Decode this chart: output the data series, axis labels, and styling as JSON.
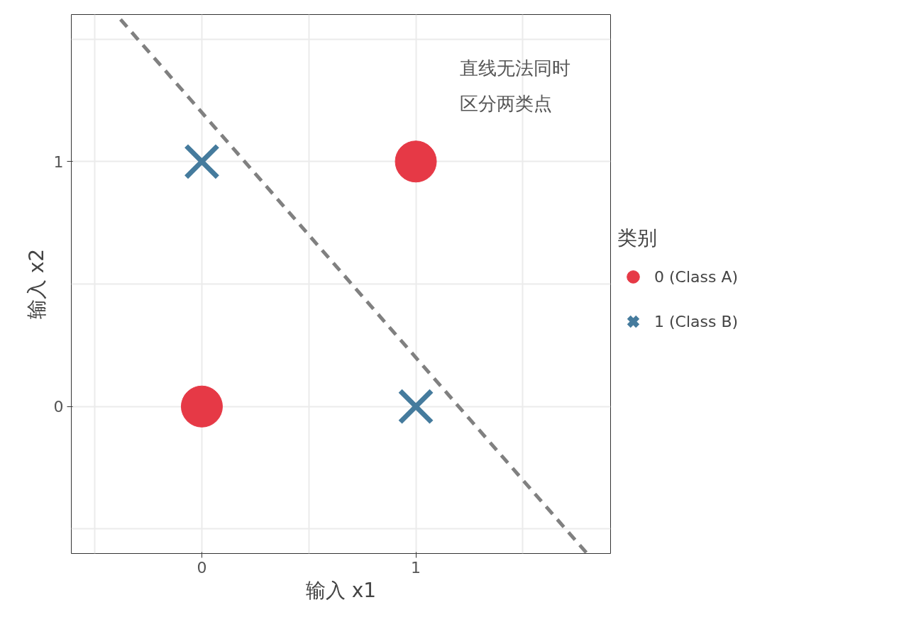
{
  "chart_data": {
    "type": "scatter",
    "xlabel": "输入 x1",
    "ylabel": "输入 x2",
    "legend_title": "类别",
    "legend": "right",
    "xlim": [
      -0.61,
      1.91
    ],
    "ylim": [
      -0.6,
      1.6
    ],
    "xticks": [
      {
        "value": -0.5,
        "label": null
      },
      0,
      {
        "value": 0.5,
        "label": null
      },
      1,
      {
        "value": 1.5,
        "label": null
      }
    ],
    "yticks": [
      {
        "value": -0.5,
        "label": null
      },
      0,
      {
        "value": 0.5,
        "label": null
      },
      1,
      {
        "value": 1.5,
        "label": null
      }
    ],
    "grid": true,
    "annotations": [
      "直线无法同时区分两类点"
    ],
    "series": [
      {
        "name": "0 (Class A)",
        "color": "#e63946",
        "marker": "circle",
        "x": [
          0,
          1
        ],
        "values": [
          0,
          1
        ]
      },
      {
        "name": "1 (Class B)",
        "color": "#457b9d",
        "marker": "cross",
        "x": [
          1,
          0
        ],
        "values": [
          0,
          1
        ]
      },
      {
        "type": "line",
        "color": "#808080",
        "line_style": "dashed",
        "marker": "none",
        "x": [
          -0.38,
          1.8
        ],
        "values": [
          1.58,
          -0.6
        ]
      }
    ]
  }
}
